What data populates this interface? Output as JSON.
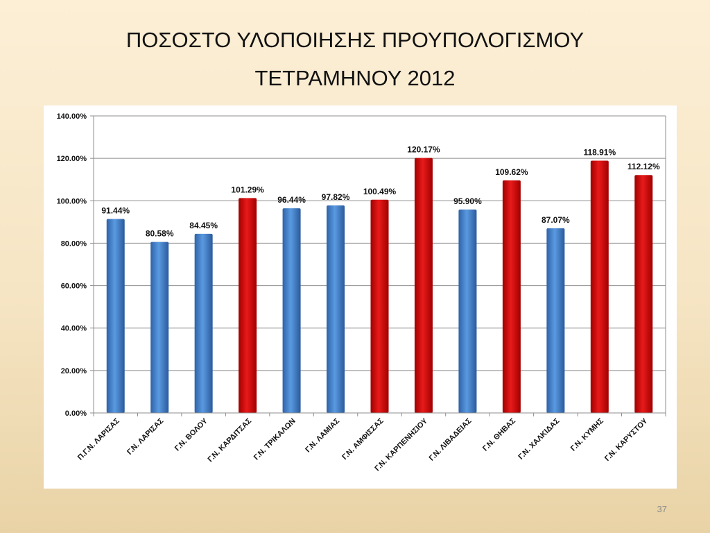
{
  "slide": {
    "title_line1": "ΠΟΣΟΣΤΟ ΥΛΟΠΟΙΗΣΗΣ ΠΡΟΥΠΟΛΟΓΙΣΜΟΥ",
    "title_line2": "ΤΕΤΡΑΜΗΝΟΥ 2012",
    "page_number": "37"
  },
  "colors": {
    "below_100": "#3f7fc8",
    "above_100": "#cf1111"
  },
  "chart_data": {
    "type": "bar",
    "title": "ΠΟΣΟΣΤΟ ΥΛΟΠΟΙΗΣΗΣ ΠΡΟΥΠΟΛΟΓΙΣΜΟΥ ΤΕΤΡΑΜΗΝΟΥ 2012",
    "categories": [
      "Π.Γ.Ν. ΛΑΡΙΣΑΣ",
      "Γ.Ν. ΛΑΡΙΣΑΣ",
      "Γ.Ν. ΒΟΛΟΥ",
      "Γ.Ν. ΚΑΡΔΙΤΣΑΣ",
      "Γ.Ν. ΤΡΙΚΑΛΩΝ",
      "Γ.Ν. ΛΑΜΙΑΣ",
      "Γ.Ν. ΑΜΦΙΣΣΑΣ",
      "Γ.Ν. ΚΑΡΠΕΝΗΣΙΟΥ",
      "Γ.Ν. ΛΙΒΑΔΕΙΑΣ",
      "Γ.Ν. ΘΗΒΑΣ",
      "Γ.Ν. ΧΑΛΚΙΔΑΣ",
      "Γ.Ν. ΚΥΜΗΣ",
      "Γ.Ν. ΚΑΡΥΣΤΟΥ"
    ],
    "values": [
      91.44,
      80.58,
      84.45,
      101.29,
      96.44,
      97.82,
      100.49,
      120.17,
      95.9,
      109.62,
      87.07,
      118.91,
      112.12
    ],
    "labels": [
      "91.44%",
      "80.58%",
      "84.45%",
      "101.29%",
      "96.44%",
      "97.82%",
      "100.49%",
      "120.17%",
      "95.90%",
      "109.62%",
      "87.07%",
      "118.91%",
      "112.12%"
    ],
    "yticks": [
      "0.00%",
      "20.00%",
      "40.00%",
      "60.00%",
      "80.00%",
      "100.00%",
      "120.00%",
      "140.00%"
    ],
    "ylim": [
      0,
      140
    ],
    "grid": true,
    "legend": "none"
  }
}
